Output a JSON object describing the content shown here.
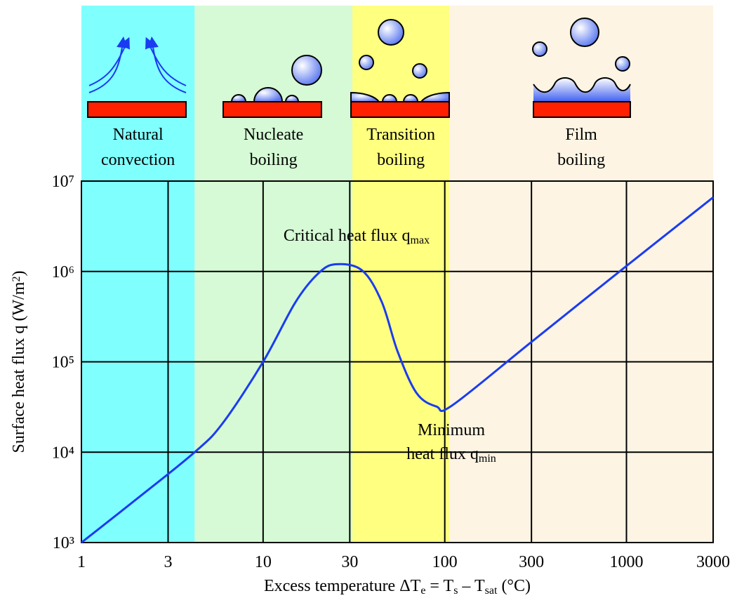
{
  "chart_data": {
    "type": "line",
    "xlabel": [
      {
        "text": "Excess temperature ΔT"
      },
      {
        "sub": "e"
      },
      {
        "text": " = T"
      },
      {
        "sub": "s"
      },
      {
        "text": " – T"
      },
      {
        "sub": "sat"
      },
      {
        "text": " (°C)"
      }
    ],
    "ylabel": [
      {
        "text": "Surface heat flux q (W/m"
      },
      {
        "sup": "2"
      },
      {
        "text": ")"
      }
    ],
    "log_x": true,
    "log_y": true,
    "grid": true,
    "xlim": [
      1,
      3000
    ],
    "xticks": [
      1,
      3,
      10,
      30,
      100,
      300,
      1000,
      3000
    ],
    "ylim": [
      1000,
      10000000
    ],
    "yticks": [
      {
        "value": 1000,
        "label": "10³"
      },
      {
        "value": 10000,
        "label": "10⁴"
      },
      {
        "value": 100000,
        "label": "10⁵"
      },
      {
        "value": 1000000,
        "label": "10⁶"
      },
      {
        "value": 10000000,
        "label": "10⁷"
      }
    ],
    "regions": [
      {
        "label": [
          "Natural",
          "convection"
        ],
        "xmin": 1,
        "xmax": 4.2,
        "color": "#80ffff"
      },
      {
        "label": [
          "Nucleate",
          "boiling"
        ],
        "xmin": 4.2,
        "xmax": 31,
        "color": "#d5fad5"
      },
      {
        "label": [
          "Transition",
          "boiling"
        ],
        "xmin": 31,
        "xmax": 106,
        "color": "#ffff80"
      },
      {
        "label": [
          "Film",
          "boiling"
        ],
        "xmin": 106,
        "xmax": 3000,
        "color": "#fdf4e3"
      }
    ],
    "curve": {
      "color": "#1a3cf0",
      "x": [
        1,
        2,
        4.2,
        6,
        10,
        15,
        20,
        25,
        35,
        45,
        55,
        70,
        90,
        110,
        300,
        1000,
        3000
      ],
      "values": [
        1000,
        3000,
        10000,
        21000,
        100000,
        450000,
        940000,
        1200000,
        1030000,
        460000,
        130000,
        45000,
        32000,
        33000,
        166000,
        1150000,
        6600000
      ]
    },
    "annotations": [
      {
        "lines": [
          [
            {
              "text": "Critical heat flux q"
            },
            {
              "sub": "max"
            }
          ]
        ]
      },
      {
        "lines": [
          [
            {
              "text": "Minimum"
            }
          ],
          [
            {
              "text": "heat flux q"
            },
            {
              "sub": "min"
            }
          ]
        ]
      }
    ]
  }
}
